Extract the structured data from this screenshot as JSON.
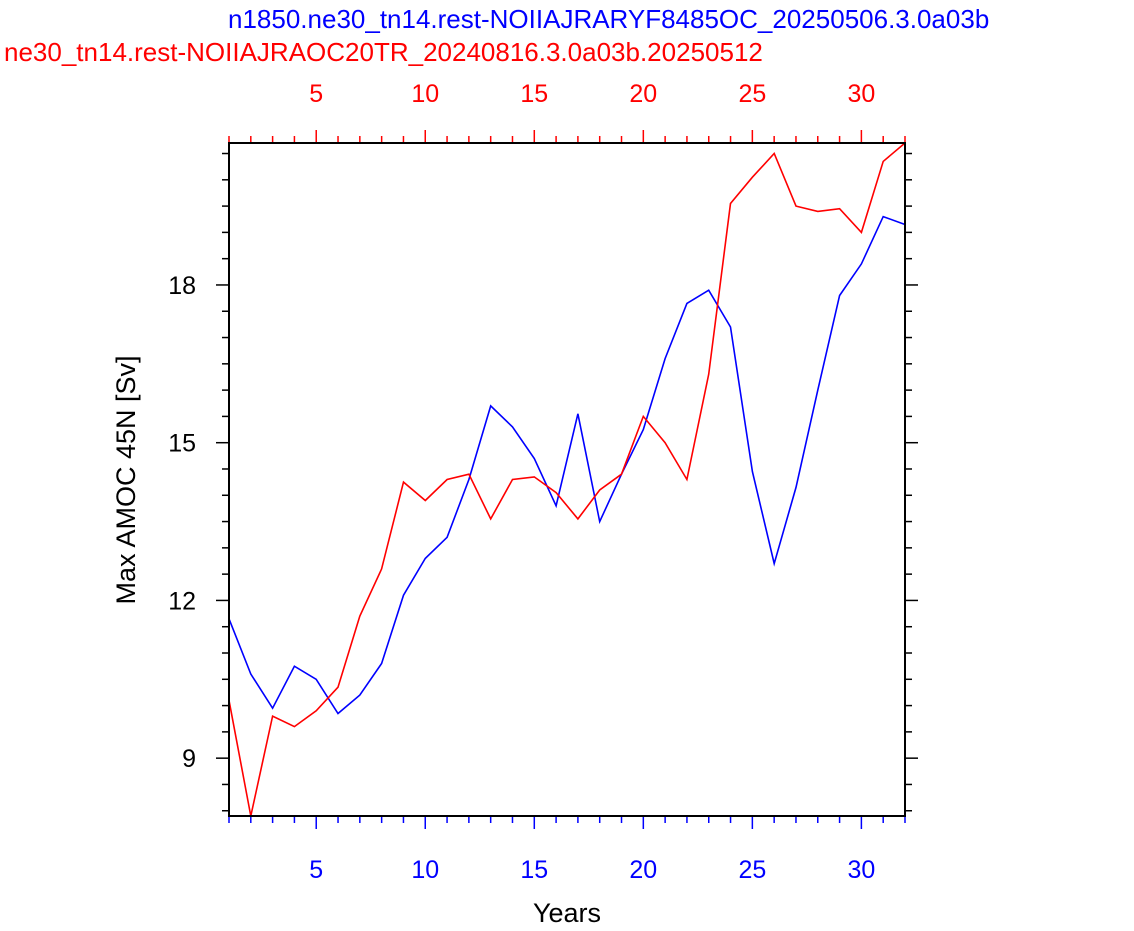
{
  "chart_data": {
    "type": "line",
    "title_top": "n1850.ne30_tn14.rest-NOIIAJRARYF8485OC_20250506.3.0a03b",
    "title_bottom": "ne30_tn14.rest-NOIIAJRAOC20TR_20240816.3.0a03b.20250512",
    "xlabel": "Years",
    "ylabel": "Max AMOC 45N [Sv]",
    "xlim": [
      1,
      32
    ],
    "ylim": [
      7.9,
      20.7
    ],
    "y_ticks": [
      9,
      12,
      15,
      18
    ],
    "y_tick_labels": [
      "9",
      "12",
      "15",
      "18"
    ],
    "x_ticks": [
      5,
      10,
      15,
      20,
      25,
      30
    ],
    "x_tick_labels": [
      "5",
      "10",
      "15",
      "20",
      "25",
      "30"
    ],
    "top_x_ticks": [
      5,
      10,
      15,
      20,
      25,
      30
    ],
    "top_x_tick_labels": [
      "5",
      "10",
      "15",
      "20",
      "25",
      "30"
    ],
    "series": [
      {
        "color": "#0000ff",
        "x": [
          1,
          2,
          3,
          4,
          5,
          6,
          7,
          8,
          9,
          10,
          11,
          12,
          13,
          14,
          15,
          16,
          17,
          18,
          19,
          20,
          21,
          22,
          23,
          24,
          25,
          26,
          27,
          28,
          29,
          30,
          31,
          32
        ],
        "values": [
          11.65,
          10.6,
          9.95,
          10.75,
          10.5,
          9.85,
          10.2,
          10.8,
          12.1,
          12.8,
          13.2,
          14.3,
          15.7,
          15.3,
          14.7,
          13.8,
          15.55,
          13.5,
          14.4,
          15.25,
          16.6,
          17.65,
          17.9,
          17.2,
          14.45,
          12.7,
          14.15,
          16.0,
          17.8,
          18.4,
          19.3,
          19.15
        ],
        "axis": "bottom"
      },
      {
        "color": "#ff0000",
        "x": [
          1,
          2,
          3,
          4,
          5,
          6,
          7,
          8,
          9,
          10,
          11,
          12,
          13,
          14,
          15,
          16,
          17,
          18,
          19,
          20,
          21,
          22,
          23,
          24,
          25,
          26,
          27,
          28,
          29,
          30,
          31,
          32
        ],
        "values": [
          10.1,
          7.9,
          9.8,
          9.6,
          9.9,
          10.35,
          11.7,
          12.6,
          14.25,
          13.9,
          14.3,
          14.4,
          13.55,
          14.3,
          14.35,
          14.05,
          13.55,
          14.1,
          14.4,
          15.5,
          15.0,
          14.3,
          16.3,
          19.55,
          20.05,
          20.5,
          19.5,
          19.4,
          19.45,
          19.0,
          20.35,
          20.7
        ],
        "axis": "top"
      }
    ],
    "colors": {
      "top_axis": "#ff0000",
      "bottom_axis": "#0000ff",
      "frame": "#000000"
    },
    "grid": false,
    "legend": "none"
  }
}
